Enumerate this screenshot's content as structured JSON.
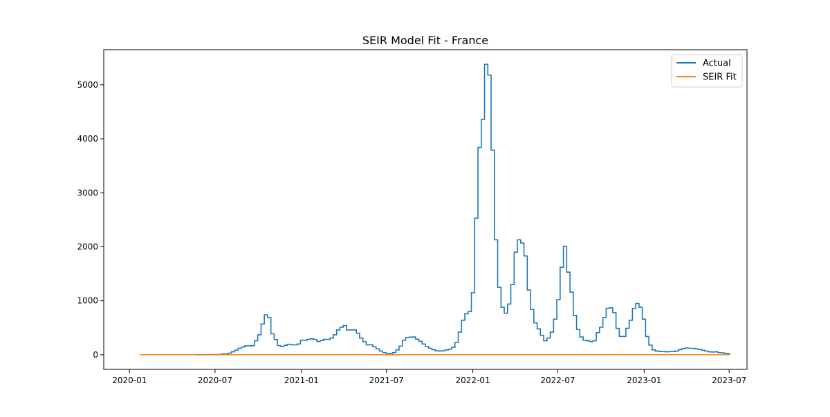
{
  "chart_data": {
    "type": "line",
    "title": "SEIR Model Fit - France",
    "xlabel": "",
    "ylabel": "",
    "xlim": [
      "2019-11-07",
      "2023-08-08"
    ],
    "ylim": [
      -270,
      5650
    ],
    "x_ticks": [
      "2020-01",
      "2020-07",
      "2021-01",
      "2021-07",
      "2022-01",
      "2022-07",
      "2023-01",
      "2023-07"
    ],
    "y_ticks": [
      0,
      1000,
      2000,
      3000,
      4000,
      5000
    ],
    "grid": false,
    "legend": {
      "position": "upper right",
      "entries": [
        "Actual",
        "SEIR Fit"
      ]
    },
    "series": [
      {
        "name": "Actual",
        "color": "#1f77b4",
        "step": true,
        "points": [
          [
            "2020-05-20",
            0
          ],
          [
            "2020-06-15",
            4
          ],
          [
            "2020-07-15",
            15
          ],
          [
            "2020-07-29",
            30
          ],
          [
            "2020-08-05",
            55
          ],
          [
            "2020-08-12",
            85
          ],
          [
            "2020-08-19",
            120
          ],
          [
            "2020-08-26",
            145
          ],
          [
            "2020-09-02",
            165
          ],
          [
            "2020-09-16",
            170
          ],
          [
            "2020-09-23",
            260
          ],
          [
            "2020-09-30",
            370
          ],
          [
            "2020-10-07",
            570
          ],
          [
            "2020-10-14",
            740
          ],
          [
            "2020-10-21",
            690
          ],
          [
            "2020-10-28",
            390
          ],
          [
            "2020-11-04",
            280
          ],
          [
            "2020-11-11",
            170
          ],
          [
            "2020-11-18",
            155
          ],
          [
            "2020-11-25",
            175
          ],
          [
            "2020-12-02",
            195
          ],
          [
            "2020-12-09",
            185
          ],
          [
            "2020-12-23",
            200
          ],
          [
            "2020-12-30",
            270
          ],
          [
            "2021-01-13",
            285
          ],
          [
            "2021-01-20",
            295
          ],
          [
            "2021-01-27",
            285
          ],
          [
            "2021-02-03",
            245
          ],
          [
            "2021-02-10",
            265
          ],
          [
            "2021-02-17",
            285
          ],
          [
            "2021-03-03",
            310
          ],
          [
            "2021-03-10",
            370
          ],
          [
            "2021-03-17",
            460
          ],
          [
            "2021-03-24",
            510
          ],
          [
            "2021-03-31",
            540
          ],
          [
            "2021-04-07",
            460
          ],
          [
            "2021-04-28",
            400
          ],
          [
            "2021-05-05",
            310
          ],
          [
            "2021-05-12",
            240
          ],
          [
            "2021-05-19",
            185
          ],
          [
            "2021-06-02",
            150
          ],
          [
            "2021-06-09",
            110
          ],
          [
            "2021-06-16",
            70
          ],
          [
            "2021-06-23",
            40
          ],
          [
            "2021-06-30",
            25
          ],
          [
            "2021-07-07",
            20
          ],
          [
            "2021-07-14",
            40
          ],
          [
            "2021-07-21",
            90
          ],
          [
            "2021-07-28",
            160
          ],
          [
            "2021-08-04",
            270
          ],
          [
            "2021-08-11",
            320
          ],
          [
            "2021-08-18",
            325
          ],
          [
            "2021-08-25",
            330
          ],
          [
            "2021-09-01",
            290
          ],
          [
            "2021-09-08",
            250
          ],
          [
            "2021-09-15",
            200
          ],
          [
            "2021-09-22",
            155
          ],
          [
            "2021-09-29",
            120
          ],
          [
            "2021-10-06",
            95
          ],
          [
            "2021-10-13",
            75
          ],
          [
            "2021-10-20",
            70
          ],
          [
            "2021-10-27",
            75
          ],
          [
            "2021-11-03",
            90
          ],
          [
            "2021-11-10",
            105
          ],
          [
            "2021-11-17",
            140
          ],
          [
            "2021-11-24",
            230
          ],
          [
            "2021-12-01",
            420
          ],
          [
            "2021-12-08",
            640
          ],
          [
            "2021-12-15",
            760
          ],
          [
            "2021-12-22",
            800
          ],
          [
            "2021-12-29",
            1150
          ],
          [
            "2022-01-05",
            2530
          ],
          [
            "2022-01-12",
            3840
          ],
          [
            "2022-01-19",
            4360
          ],
          [
            "2022-01-26",
            5380
          ],
          [
            "2022-02-02",
            5180
          ],
          [
            "2022-02-09",
            3790
          ],
          [
            "2022-02-16",
            2130
          ],
          [
            "2022-02-23",
            1250
          ],
          [
            "2022-03-02",
            880
          ],
          [
            "2022-03-09",
            770
          ],
          [
            "2022-03-16",
            940
          ],
          [
            "2022-03-23",
            1300
          ],
          [
            "2022-03-30",
            1900
          ],
          [
            "2022-04-06",
            2130
          ],
          [
            "2022-04-13",
            2070
          ],
          [
            "2022-04-20",
            1830
          ],
          [
            "2022-04-27",
            1200
          ],
          [
            "2022-05-04",
            840
          ],
          [
            "2022-05-11",
            590
          ],
          [
            "2022-05-18",
            480
          ],
          [
            "2022-05-25",
            360
          ],
          [
            "2022-06-01",
            260
          ],
          [
            "2022-06-08",
            310
          ],
          [
            "2022-06-15",
            420
          ],
          [
            "2022-06-22",
            660
          ],
          [
            "2022-06-29",
            1020
          ],
          [
            "2022-07-06",
            1620
          ],
          [
            "2022-07-13",
            2010
          ],
          [
            "2022-07-20",
            1530
          ],
          [
            "2022-07-27",
            1160
          ],
          [
            "2022-08-03",
            730
          ],
          [
            "2022-08-10",
            470
          ],
          [
            "2022-08-17",
            330
          ],
          [
            "2022-08-24",
            270
          ],
          [
            "2022-08-31",
            260
          ],
          [
            "2022-09-07",
            245
          ],
          [
            "2022-09-14",
            260
          ],
          [
            "2022-09-21",
            410
          ],
          [
            "2022-09-28",
            510
          ],
          [
            "2022-10-05",
            690
          ],
          [
            "2022-10-12",
            860
          ],
          [
            "2022-10-19",
            870
          ],
          [
            "2022-10-26",
            780
          ],
          [
            "2022-11-02",
            490
          ],
          [
            "2022-11-09",
            340
          ],
          [
            "2022-11-23",
            490
          ],
          [
            "2022-11-30",
            640
          ],
          [
            "2022-12-07",
            860
          ],
          [
            "2022-12-14",
            950
          ],
          [
            "2022-12-21",
            880
          ],
          [
            "2022-12-28",
            660
          ],
          [
            "2023-01-04",
            340
          ],
          [
            "2023-01-11",
            180
          ],
          [
            "2023-01-18",
            90
          ],
          [
            "2023-01-25",
            70
          ],
          [
            "2023-02-01",
            60
          ],
          [
            "2023-02-15",
            55
          ],
          [
            "2023-02-22",
            60
          ],
          [
            "2023-03-08",
            70
          ],
          [
            "2023-03-15",
            95
          ],
          [
            "2023-03-22",
            115
          ],
          [
            "2023-03-29",
            125
          ],
          [
            "2023-04-05",
            120
          ],
          [
            "2023-04-19",
            110
          ],
          [
            "2023-04-26",
            100
          ],
          [
            "2023-05-03",
            85
          ],
          [
            "2023-05-10",
            70
          ],
          [
            "2023-05-17",
            55
          ],
          [
            "2023-05-24",
            50
          ],
          [
            "2023-05-31",
            55
          ],
          [
            "2023-06-07",
            40
          ],
          [
            "2023-06-14",
            35
          ],
          [
            "2023-06-21",
            25
          ],
          [
            "2023-06-28",
            20
          ],
          [
            "2023-07-02",
            0
          ]
        ]
      },
      {
        "name": "SEIR Fit",
        "color": "#ff7f0e",
        "step": false,
        "points": [
          [
            "2020-01-22",
            0
          ],
          [
            "2023-07-02",
            0
          ]
        ]
      }
    ]
  }
}
